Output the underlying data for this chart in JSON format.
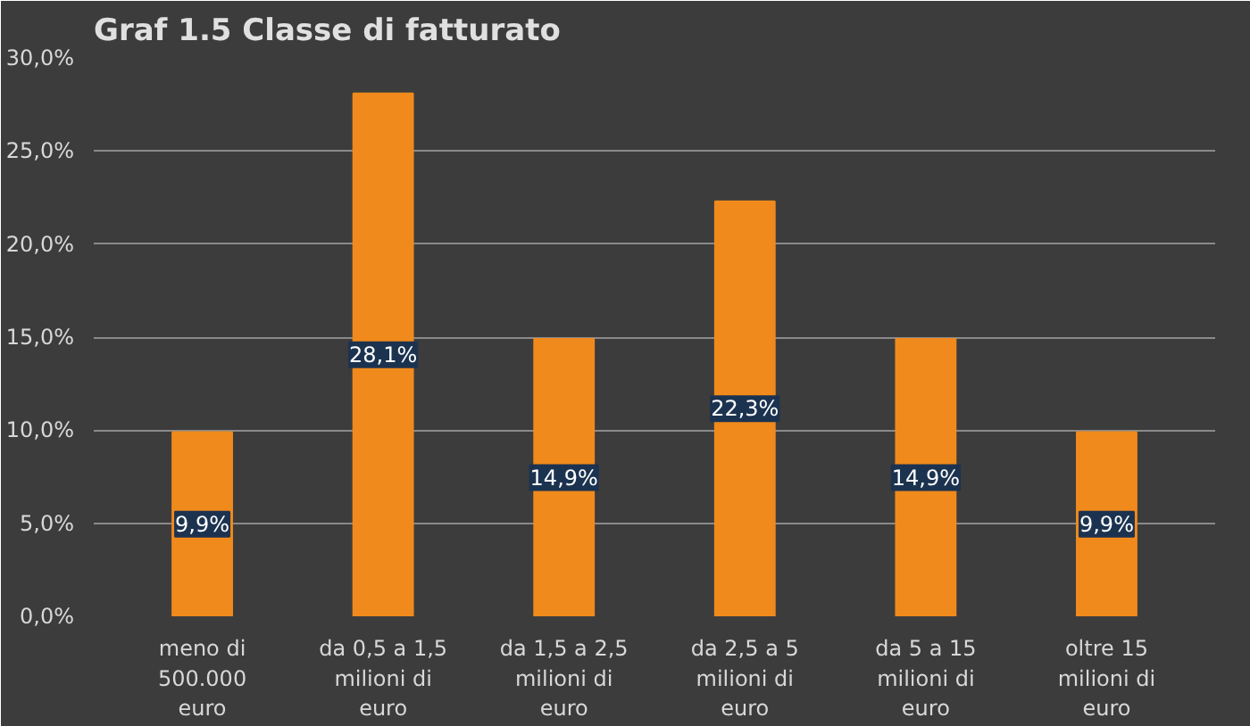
{
  "chart_data": {
    "type": "bar",
    "title": "Graf 1.5 Classe di fatturato",
    "categories": [
      "meno di\n500.000\neuro",
      "da 0,5 a 1,5\nmilioni di\neuro",
      "da 1,5 a 2,5\nmilioni di\neuro",
      "da 2,5 a 5\nmilioni di\neuro",
      "da 5 a 15\nmilioni di\neuro",
      "oltre 15\nmilioni di\neuro"
    ],
    "values": [
      9.9,
      28.1,
      14.9,
      22.3,
      14.9,
      9.9
    ],
    "value_labels": [
      "9,9%",
      "28,1%",
      "14,9%",
      "22,3%",
      "14,9%",
      "9,9%"
    ],
    "color": "#f08a1c",
    "ylim": [
      0,
      30
    ],
    "yticks": [
      {
        "value": 0,
        "label": "0,0%"
      },
      {
        "value": 5,
        "label": "5,0%"
      },
      {
        "value": 10,
        "label": "10,0%"
      },
      {
        "value": 15,
        "label": "15,0%"
      },
      {
        "value": 20,
        "label": "20,0%"
      },
      {
        "value": 25,
        "label": "25,0%"
      },
      {
        "value": 30,
        "label": "30,0%"
      }
    ],
    "grid": "y"
  }
}
